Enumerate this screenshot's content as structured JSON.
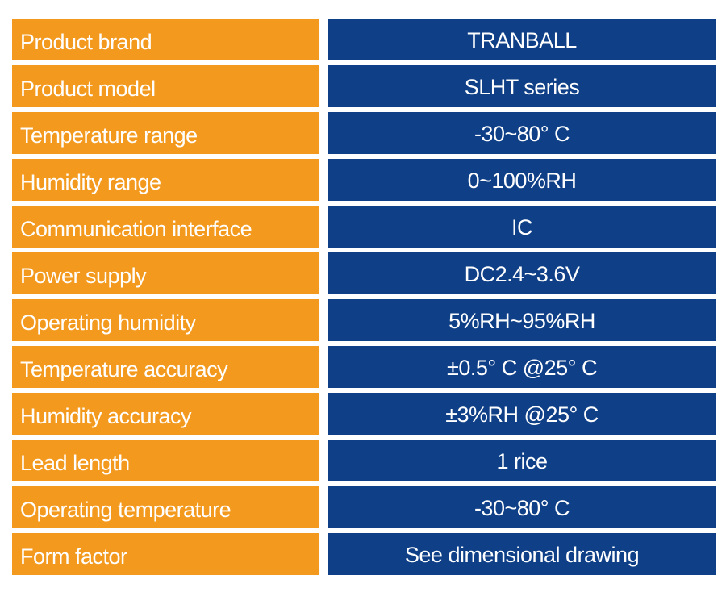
{
  "colors": {
    "label_bg": "#f39a1e",
    "value_bg": "#0e3f87",
    "text": "#ffffff"
  },
  "rows": [
    {
      "label": "Product brand",
      "value": "TRANBALL"
    },
    {
      "label": "Product model",
      "value": "SLHT series"
    },
    {
      "label": "Temperature range",
      "value": "-30~80° C"
    },
    {
      "label": "Humidity range",
      "value": "0~100%RH"
    },
    {
      "label": "Communication interface",
      "value": "IC"
    },
    {
      "label": "Power supply",
      "value": "DC2.4~3.6V"
    },
    {
      "label": "Operating humidity",
      "value": "5%RH~95%RH"
    },
    {
      "label": "Temperature accuracy",
      "value": "±0.5° C @25° C"
    },
    {
      "label": "Humidity accuracy",
      "value": "±3%RH @25° C"
    },
    {
      "label": "Lead length",
      "value": "1 rice"
    },
    {
      "label": "Operating temperature",
      "value": "-30~80° C"
    },
    {
      "label": "Form factor",
      "value": "See dimensional drawing"
    }
  ]
}
